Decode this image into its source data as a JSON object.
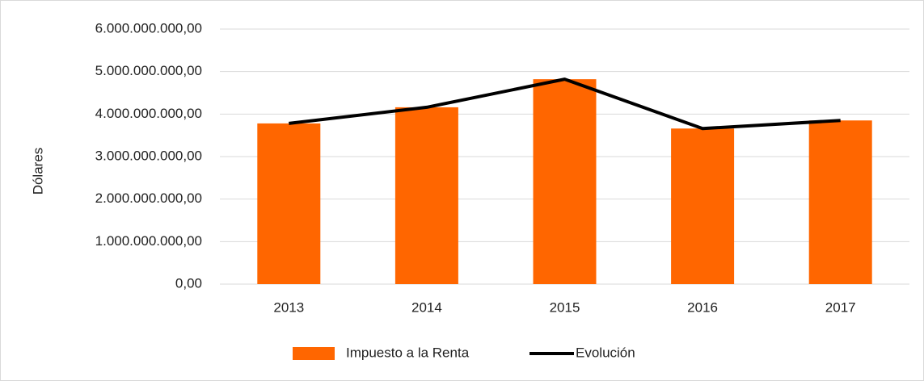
{
  "chart_data": {
    "type": "bar",
    "y_label": "Dólares",
    "categories": [
      "2013",
      "2014",
      "2015",
      "2016",
      "2017"
    ],
    "series": [
      {
        "name": "Impuesto a la Renta",
        "type": "bar",
        "color": "#ff6600",
        "values": [
          3780000000,
          4160000000,
          4820000000,
          3660000000,
          3850000000
        ]
      },
      {
        "name": "Evolución",
        "type": "line",
        "color": "#000000",
        "values": [
          3780000000,
          4160000000,
          4820000000,
          3660000000,
          3850000000
        ]
      }
    ],
    "ylim": [
      0,
      6000000000
    ],
    "yticks": [
      {
        "value": 0,
        "label": "0,00"
      },
      {
        "value": 1000000000,
        "label": "1.000.000.000,00"
      },
      {
        "value": 2000000000,
        "label": "2.000.000.000,00"
      },
      {
        "value": 3000000000,
        "label": "3.000.000.000,00"
      },
      {
        "value": 4000000000,
        "label": "4.000.000.000,00"
      },
      {
        "value": 5000000000,
        "label": "5.000.000.000,00"
      },
      {
        "value": 6000000000,
        "label": "6.000.000.000,00"
      }
    ],
    "grid": true,
    "legend": "bottom"
  }
}
